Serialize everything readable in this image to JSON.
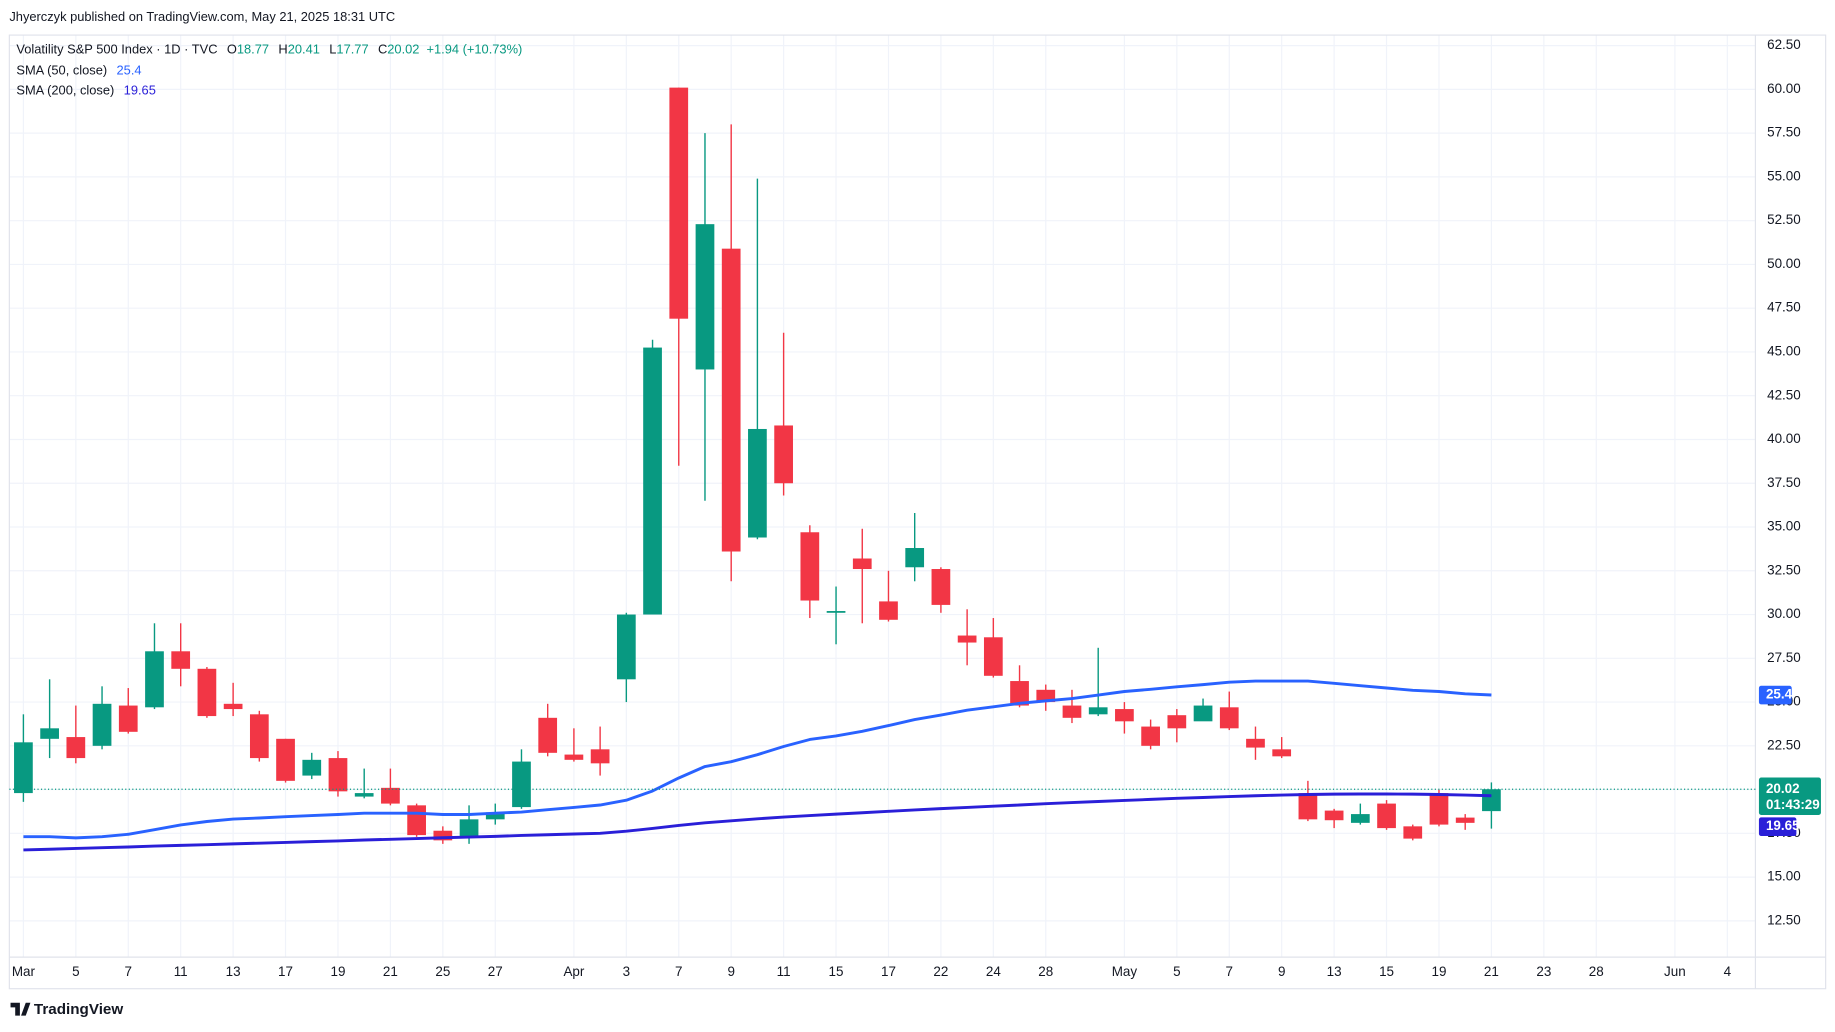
{
  "header": {
    "text": "Jhyerczyk published on TradingView.com, May 21, 2025 18:31 UTC"
  },
  "legend": {
    "keys": [
      "O",
      "H",
      "L",
      "C"
    ],
    "change": "+1.94 (+10.73%)"
  },
  "price_scale": {
    "countdown": "01:43:29"
  },
  "footer": {
    "brand": "TradingView"
  },
  "chart_data": {
    "type": "candlestick",
    "title": "Volatility S&P 500 Index · 1D · TVC",
    "categories": [
      "Mar",
      null,
      "5",
      null,
      "7",
      null,
      "11",
      null,
      "13",
      null,
      "17",
      null,
      "19",
      null,
      "21",
      null,
      "25",
      null,
      "27",
      null,
      null,
      "Apr",
      null,
      "3",
      null,
      "7",
      null,
      "9",
      null,
      "11",
      null,
      "15",
      null,
      "17",
      null,
      "22",
      null,
      "24",
      null,
      "28",
      null,
      null,
      "May",
      null,
      "5",
      null,
      "7",
      null,
      "9",
      null,
      "13",
      null,
      "15",
      null,
      "19",
      null,
      "21",
      null,
      "23",
      null,
      "28",
      null,
      null,
      "Jun",
      null,
      "4"
    ],
    "open": [
      19.8,
      22.9,
      23.0,
      22.5,
      24.8,
      24.7,
      27.9,
      26.9,
      24.9,
      24.3,
      22.9,
      20.8,
      21.8,
      19.6,
      20.1,
      19.1,
      17.65,
      17.25,
      18.3,
      19.0,
      24.1,
      22.0,
      22.3,
      26.3,
      30.0,
      60.1,
      44.0,
      50.9,
      34.4,
      40.8,
      34.7,
      30.1,
      33.2,
      30.75,
      32.7,
      32.6,
      28.8,
      28.7,
      26.2,
      25.7,
      24.8,
      24.3,
      24.6,
      23.6,
      24.25,
      23.9,
      24.7,
      22.9,
      22.3,
      19.8,
      18.8,
      18.1,
      19.2,
      17.9,
      19.8,
      18.4,
      18.77,
      null,
      null,
      null,
      null,
      null,
      null,
      null,
      null,
      null
    ],
    "high": [
      24.3,
      26.3,
      24.8,
      25.9,
      25.8,
      29.5,
      29.5,
      27.0,
      26.1,
      24.5,
      22.9,
      22.1,
      22.2,
      21.2,
      21.2,
      19.2,
      17.9,
      19.1,
      19.2,
      22.3,
      24.9,
      23.5,
      23.6,
      30.1,
      45.7,
      60.1,
      57.5,
      58.0,
      54.9,
      46.1,
      35.1,
      31.6,
      34.9,
      32.5,
      35.8,
      32.7,
      30.3,
      29.8,
      27.1,
      26.0,
      25.7,
      28.1,
      25.0,
      24.0,
      24.6,
      25.2,
      25.6,
      23.6,
      23.0,
      20.5,
      18.9,
      19.2,
      19.4,
      18.0,
      20.0,
      18.6,
      20.41,
      null,
      null,
      null,
      null,
      null,
      null,
      null,
      null,
      null
    ],
    "low": [
      19.3,
      21.8,
      21.5,
      22.3,
      23.2,
      24.6,
      25.9,
      24.1,
      24.2,
      21.6,
      20.4,
      20.6,
      19.6,
      19.5,
      19.1,
      17.3,
      16.9,
      16.9,
      18.0,
      18.9,
      21.9,
      21.6,
      20.8,
      25.0,
      30.0,
      38.5,
      36.5,
      31.9,
      34.3,
      36.8,
      29.8,
      28.3,
      29.5,
      29.6,
      31.9,
      30.1,
      27.1,
      26.4,
      24.7,
      24.5,
      23.8,
      24.2,
      23.2,
      22.3,
      22.7,
      24.0,
      23.4,
      21.7,
      21.8,
      18.2,
      17.8,
      18.0,
      17.7,
      17.1,
      17.9,
      17.7,
      17.77,
      null,
      null,
      null,
      null,
      null,
      null,
      null,
      null,
      null
    ],
    "close": [
      22.7,
      23.5,
      21.8,
      24.9,
      23.3,
      27.9,
      26.9,
      24.2,
      24.6,
      21.8,
      20.5,
      21.7,
      19.9,
      19.8,
      19.2,
      17.4,
      17.1,
      18.3,
      18.7,
      21.6,
      22.1,
      21.7,
      21.5,
      30.0,
      45.25,
      46.9,
      52.3,
      33.6,
      40.6,
      37.5,
      30.8,
      30.2,
      32.6,
      29.7,
      33.8,
      30.55,
      28.4,
      26.5,
      24.8,
      25.0,
      24.1,
      24.7,
      23.9,
      22.5,
      23.5,
      24.8,
      23.5,
      22.4,
      21.9,
      18.3,
      18.25,
      18.6,
      17.8,
      17.2,
      18.0,
      18.1,
      20.02,
      null,
      null,
      null,
      null,
      null,
      null,
      null,
      null,
      null
    ],
    "up_color": "#089981",
    "down_color": "#f23645",
    "overlays": [
      {
        "name": "SMA (50, close)",
        "color": "#2962ff",
        "values": [
          17.31,
          17.31,
          17.24,
          17.31,
          17.45,
          17.71,
          17.98,
          18.18,
          18.32,
          18.38,
          18.45,
          18.52,
          18.58,
          18.65,
          18.65,
          18.65,
          18.58,
          18.58,
          18.65,
          18.72,
          18.85,
          18.98,
          19.12,
          19.39,
          19.92,
          20.66,
          21.32,
          21.59,
          21.99,
          22.46,
          22.86,
          23.06,
          23.33,
          23.66,
          24.0,
          24.26,
          24.53,
          24.73,
          24.93,
          25.07,
          25.2,
          25.4,
          25.6,
          25.73,
          25.87,
          26.0,
          26.14,
          26.2,
          26.2,
          26.2,
          26.07,
          25.94,
          25.8,
          25.67,
          25.6,
          25.47,
          25.4,
          null,
          null,
          null,
          null,
          null,
          null,
          null,
          null,
          null
        ]
      },
      {
        "name": "SMA (200, close)",
        "color": "#2a1fd8",
        "values": [
          16.55,
          16.59,
          16.64,
          16.68,
          16.72,
          16.77,
          16.81,
          16.85,
          16.9,
          16.94,
          16.98,
          17.03,
          17.07,
          17.12,
          17.16,
          17.2,
          17.25,
          17.29,
          17.33,
          17.38,
          17.42,
          17.46,
          17.5,
          17.62,
          17.78,
          17.95,
          18.1,
          18.22,
          18.33,
          18.43,
          18.52,
          18.6,
          18.68,
          18.76,
          18.84,
          18.91,
          18.98,
          19.05,
          19.12,
          19.19,
          19.26,
          19.32,
          19.38,
          19.44,
          19.5,
          19.55,
          19.6,
          19.65,
          19.69,
          19.72,
          19.74,
          19.75,
          19.75,
          19.74,
          19.72,
          19.69,
          19.65,
          null,
          null,
          null,
          null,
          null,
          null,
          null,
          null,
          null
        ]
      }
    ],
    "ylim": [
      10.43,
      63.1
    ],
    "yticks": [
      {
        "value": 12.5,
        "label": "12.50"
      },
      {
        "value": 15,
        "label": "15.00"
      },
      {
        "value": 17.5,
        "label": "17.50"
      },
      {
        "value": 20,
        "label": "20.00"
      },
      {
        "value": 22.5,
        "label": "22.50"
      },
      {
        "value": 25,
        "label": "25.00"
      },
      {
        "value": 27.5,
        "label": "27.50"
      },
      {
        "value": 30,
        "label": "30.00"
      },
      {
        "value": 32.5,
        "label": "32.50"
      },
      {
        "value": 35,
        "label": "35.00"
      },
      {
        "value": 37.5,
        "label": "37.50"
      },
      {
        "value": 40,
        "label": "40.00"
      },
      {
        "value": 42.5,
        "label": "42.50"
      },
      {
        "value": 45,
        "label": "45.00"
      },
      {
        "value": 47.5,
        "label": "47.50"
      },
      {
        "value": 50,
        "label": "50.00"
      },
      {
        "value": 52.5,
        "label": "52.50"
      },
      {
        "value": 55,
        "label": "55.00"
      },
      {
        "value": 57.5,
        "label": "57.50"
      },
      {
        "value": 60,
        "label": "60.00"
      },
      {
        "value": 62.5,
        "label": "62.50"
      }
    ],
    "grid": true
  }
}
